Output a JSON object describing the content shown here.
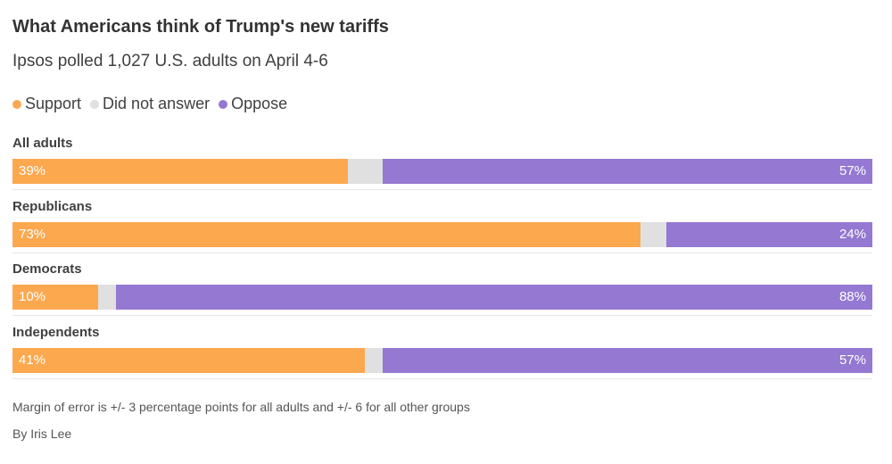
{
  "header": {
    "title": "What Americans think of Trump's new tariffs",
    "subtitle": "Ipsos polled 1,027 U.S. adults on April 4-6"
  },
  "legend": {
    "items": [
      {
        "label": "Support",
        "color": "#fba84f"
      },
      {
        "label": "Did not answer",
        "color": "#e0e0e0"
      },
      {
        "label": "Oppose",
        "color": "#9478d2"
      }
    ]
  },
  "chart_data": {
    "type": "bar",
    "orientation": "horizontal",
    "stacked": true,
    "title": "What Americans think of Trump's new tariffs",
    "subtitle": "Ipsos polled 1,027 U.S. adults on April 4-6",
    "categories": [
      "All adults",
      "Republicans",
      "Democrats",
      "Independents"
    ],
    "series": [
      {
        "name": "Support",
        "color": "#fba84f",
        "values": [
          39,
          73,
          10,
          41
        ],
        "labels": [
          "39%",
          "73%",
          "10%",
          "41%"
        ]
      },
      {
        "name": "Did not answer",
        "color": "#e0e0e0",
        "values": [
          4,
          3,
          2,
          2
        ],
        "labels": []
      },
      {
        "name": "Oppose",
        "color": "#9478d2",
        "values": [
          57,
          24,
          88,
          57
        ],
        "labels": [
          "57%",
          "24%",
          "88%",
          "57%"
        ]
      }
    ],
    "xlim": [
      0,
      100
    ],
    "unit": "%",
    "legend_position": "top-left",
    "grid": false
  },
  "footer": {
    "note": "Margin of error is +/- 3 percentage points for all adults and +/- 6 for all other groups",
    "byline": "By Iris Lee"
  }
}
